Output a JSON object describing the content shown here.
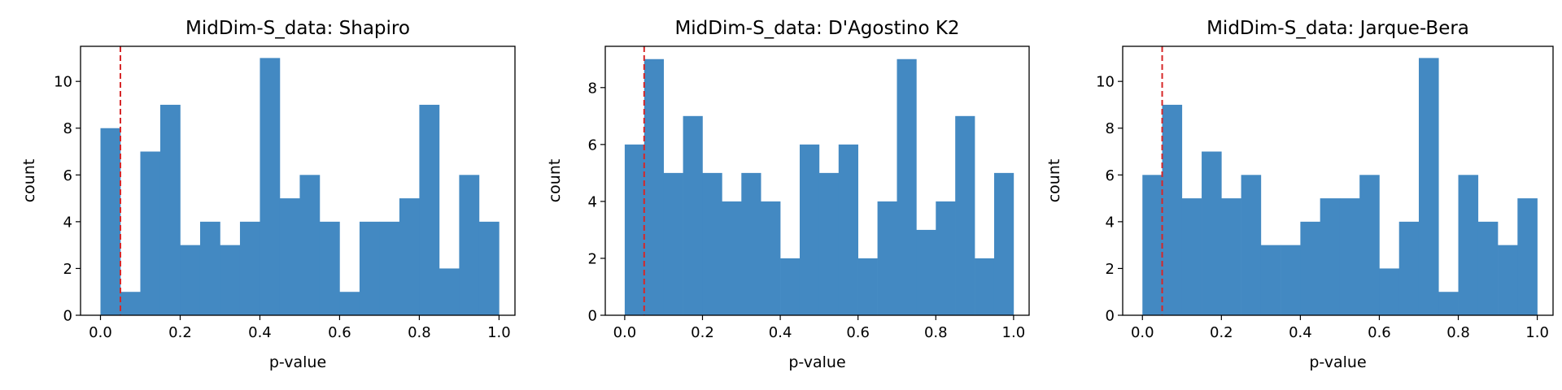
{
  "colors": {
    "bar": "#4389c2",
    "threshold_line": "#d62728",
    "axis": "#000000",
    "background": "#ffffff"
  },
  "chart_data": [
    {
      "type": "bar",
      "title": "MidDim-S_data: Shapiro",
      "xlabel": "p-value",
      "ylabel": "count",
      "xlim": [
        -0.05,
        1.04
      ],
      "ylim": [
        0,
        11.5
      ],
      "xticks": [
        "0.0",
        "0.2",
        "0.4",
        "0.6",
        "0.8",
        "1.0"
      ],
      "yticks": [
        "0",
        "2",
        "4",
        "6",
        "8",
        "10"
      ],
      "bin_edges": [
        0.0,
        0.05,
        0.1,
        0.15,
        0.2,
        0.25,
        0.3,
        0.35,
        0.4,
        0.45,
        0.5,
        0.55,
        0.6,
        0.65,
        0.7,
        0.75,
        0.8,
        0.85,
        0.9,
        0.95,
        1.0
      ],
      "values": [
        8,
        1,
        7,
        9,
        3,
        4,
        3,
        4,
        11,
        5,
        6,
        4,
        1,
        4,
        4,
        5,
        9,
        2,
        6,
        4
      ],
      "threshold": 0.05,
      "grid": false
    },
    {
      "type": "bar",
      "title": "MidDim-S_data: D'Agostino K2",
      "xlabel": "p-value",
      "ylabel": "count",
      "xlim": [
        -0.05,
        1.04
      ],
      "ylim": [
        0,
        9.45
      ],
      "xticks": [
        "0.0",
        "0.2",
        "0.4",
        "0.6",
        "0.8",
        "1.0"
      ],
      "yticks": [
        "0",
        "2",
        "4",
        "6",
        "8"
      ],
      "bin_edges": [
        0.0,
        0.05,
        0.1,
        0.15,
        0.2,
        0.25,
        0.3,
        0.35,
        0.4,
        0.45,
        0.5,
        0.55,
        0.6,
        0.65,
        0.7,
        0.75,
        0.8,
        0.85,
        0.9,
        0.95,
        1.0
      ],
      "values": [
        6,
        9,
        5,
        7,
        5,
        4,
        5,
        4,
        2,
        6,
        5,
        6,
        2,
        4,
        9,
        3,
        4,
        7,
        2,
        5
      ],
      "threshold": 0.05,
      "grid": false
    },
    {
      "type": "bar",
      "title": "MidDim-S_data: Jarque-Bera",
      "xlabel": "p-value",
      "ylabel": "count",
      "xlim": [
        -0.05,
        1.04
      ],
      "ylim": [
        0,
        11.5
      ],
      "xticks": [
        "0.0",
        "0.2",
        "0.4",
        "0.6",
        "0.8",
        "1.0"
      ],
      "yticks": [
        "0",
        "2",
        "4",
        "6",
        "8",
        "10"
      ],
      "bin_edges": [
        0.0,
        0.05,
        0.1,
        0.15,
        0.2,
        0.25,
        0.3,
        0.35,
        0.4,
        0.45,
        0.5,
        0.55,
        0.6,
        0.65,
        0.7,
        0.75,
        0.8,
        0.85,
        0.9,
        0.95,
        1.0
      ],
      "values": [
        6,
        9,
        5,
        7,
        5,
        6,
        3,
        3,
        4,
        5,
        5,
        6,
        2,
        4,
        11,
        1,
        6,
        4,
        3,
        5
      ],
      "threshold": 0.05,
      "grid": false
    }
  ]
}
